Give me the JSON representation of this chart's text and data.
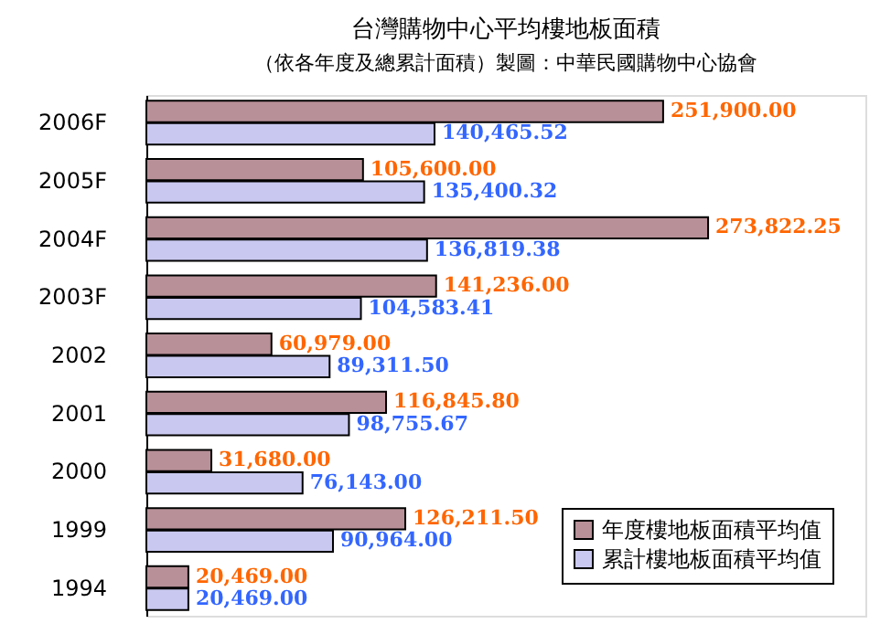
{
  "chart_data": {
    "type": "bar",
    "orientation": "horizontal",
    "title": "台灣購物中心平均樓地板面積",
    "subtitle": "（依各年度及總累計面積）製圖：中華民國購物中心協會",
    "categories": [
      "2006F",
      "2005F",
      "2004F",
      "2003F",
      "2002",
      "2001",
      "2000",
      "1999",
      "1994"
    ],
    "series": [
      {
        "name": "年度樓地板面積平均值",
        "color": "#b89098",
        "values": [
          251900.0,
          105600.0,
          273822.25,
          141236.0,
          60979.0,
          116845.8,
          31680.0,
          126211.5,
          20469.0
        ],
        "value_labels": [
          "251,900.00",
          "105,600.00",
          "273,822.25",
          "141,236.00",
          "60,979.00",
          "116,845.80",
          "31,680.00",
          "126,211.50",
          "20,469.00"
        ]
      },
      {
        "name": "累計樓地板面積平均值",
        "color": "#c8c8f0",
        "values": [
          140465.52,
          135400.32,
          136819.38,
          104583.41,
          89311.5,
          98755.67,
          76143.0,
          90964.0,
          20469.0
        ],
        "value_labels": [
          "140,465.52",
          "135,400.32",
          "136,819.38",
          "104,583.41",
          "89,311.50",
          "98,755.67",
          "76,143.00",
          "90,964.00",
          "20,469.00"
        ]
      }
    ],
    "legend": "bottom right"
  }
}
